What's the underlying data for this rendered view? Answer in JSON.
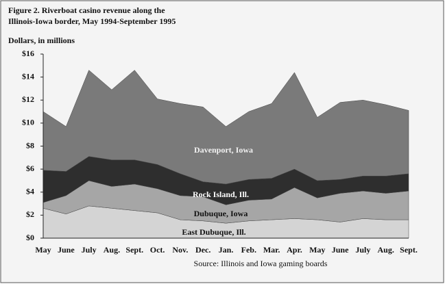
{
  "chart_data": {
    "type": "stacked-area",
    "title": [
      "Figure 2.  Riverboat casino revenue along the",
      "Illinois-Iowa border, May 1994-September 1995"
    ],
    "y_label": "Dollars, in millions",
    "source": "Source: Illinois and Iowa gaming boards",
    "categories": [
      "May",
      "June",
      "July",
      "Aug.",
      "Sept.",
      "Oct.",
      "Nov.",
      "Dec.",
      "Jan.",
      "Feb.",
      "Mar.",
      "Apr.",
      "May",
      "June",
      "July",
      "Aug.",
      "Sept."
    ],
    "series": [
      {
        "name": "East Dubuque, Ill.",
        "color": "#d4d4d4",
        "values": [
          2.6,
          2.1,
          2.8,
          2.6,
          2.4,
          2.2,
          1.6,
          1.5,
          1.3,
          1.5,
          1.6,
          1.7,
          1.6,
          1.4,
          1.7,
          1.6,
          1.6
        ]
      },
      {
        "name": "Dubuque, Iowa",
        "color": "#a6a6a6",
        "values": [
          0.5,
          1.6,
          2.2,
          1.9,
          2.3,
          2.1,
          2.1,
          2.1,
          1.6,
          1.8,
          1.8,
          2.7,
          1.9,
          2.5,
          2.4,
          2.3,
          2.5
        ]
      },
      {
        "name": "Rock Island, Ill.",
        "color": "#2e2e2e",
        "values": [
          2.8,
          2.1,
          2.1,
          2.3,
          2.1,
          2.1,
          1.9,
          1.3,
          1.8,
          1.8,
          1.8,
          1.6,
          1.5,
          1.2,
          1.3,
          1.5,
          1.5
        ]
      },
      {
        "name": "Davenport, Iowa",
        "color": "#7a7a7a",
        "values": [
          5.1,
          3.9,
          7.5,
          6.1,
          7.8,
          5.7,
          6.1,
          6.5,
          5.0,
          5.9,
          6.5,
          8.4,
          5.5,
          6.7,
          6.6,
          6.2,
          5.5
        ]
      }
    ],
    "ylim": [
      0,
      16
    ],
    "yticks": [
      {
        "value": 0,
        "label": "$0"
      },
      {
        "value": 2,
        "label": "$2"
      },
      {
        "value": 4,
        "label": "$4"
      },
      {
        "value": 6,
        "label": "$6"
      },
      {
        "value": 8,
        "label": "$8"
      },
      {
        "value": 10,
        "label": "$10"
      },
      {
        "value": 12,
        "label": "$12"
      },
      {
        "value": 14,
        "label": "$14"
      },
      {
        "value": 16,
        "label": "$16"
      }
    ]
  }
}
